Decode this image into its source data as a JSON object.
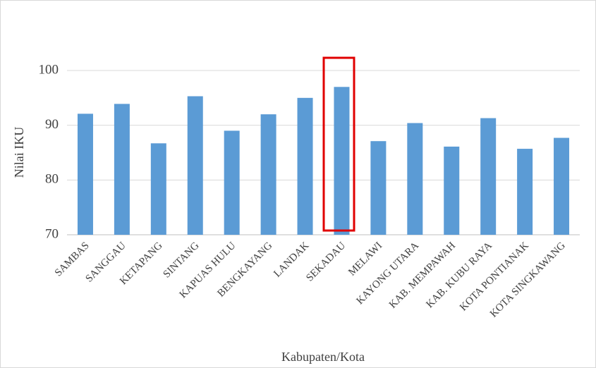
{
  "chart_data": {
    "type": "bar",
    "x_label": "Kabupaten/Kota",
    "y_label": "Nilai IKU",
    "categories": [
      "SAMBAS",
      "SANGGAU",
      "KETAPANG",
      "SINTANG",
      "KAPUAS HULU",
      "BENGKAYANG",
      "LANDAK",
      "SEKADAU",
      "MELAWI",
      "KAYONG UTARA",
      "KAB. MEMPAWAH",
      "KAB. KUBU RAYA",
      "KOTA PONTIANAK",
      "KOTA SINGKAWANG"
    ],
    "values": [
      92.1,
      93.9,
      86.7,
      95.3,
      89.0,
      92.0,
      95.0,
      97.0,
      87.1,
      90.4,
      86.1,
      91.3,
      85.7,
      87.7
    ],
    "color": "#5b9bd5",
    "ylim": [
      70,
      100
    ],
    "yticks": [
      70,
      80,
      90,
      100
    ],
    "grid": true
  }
}
